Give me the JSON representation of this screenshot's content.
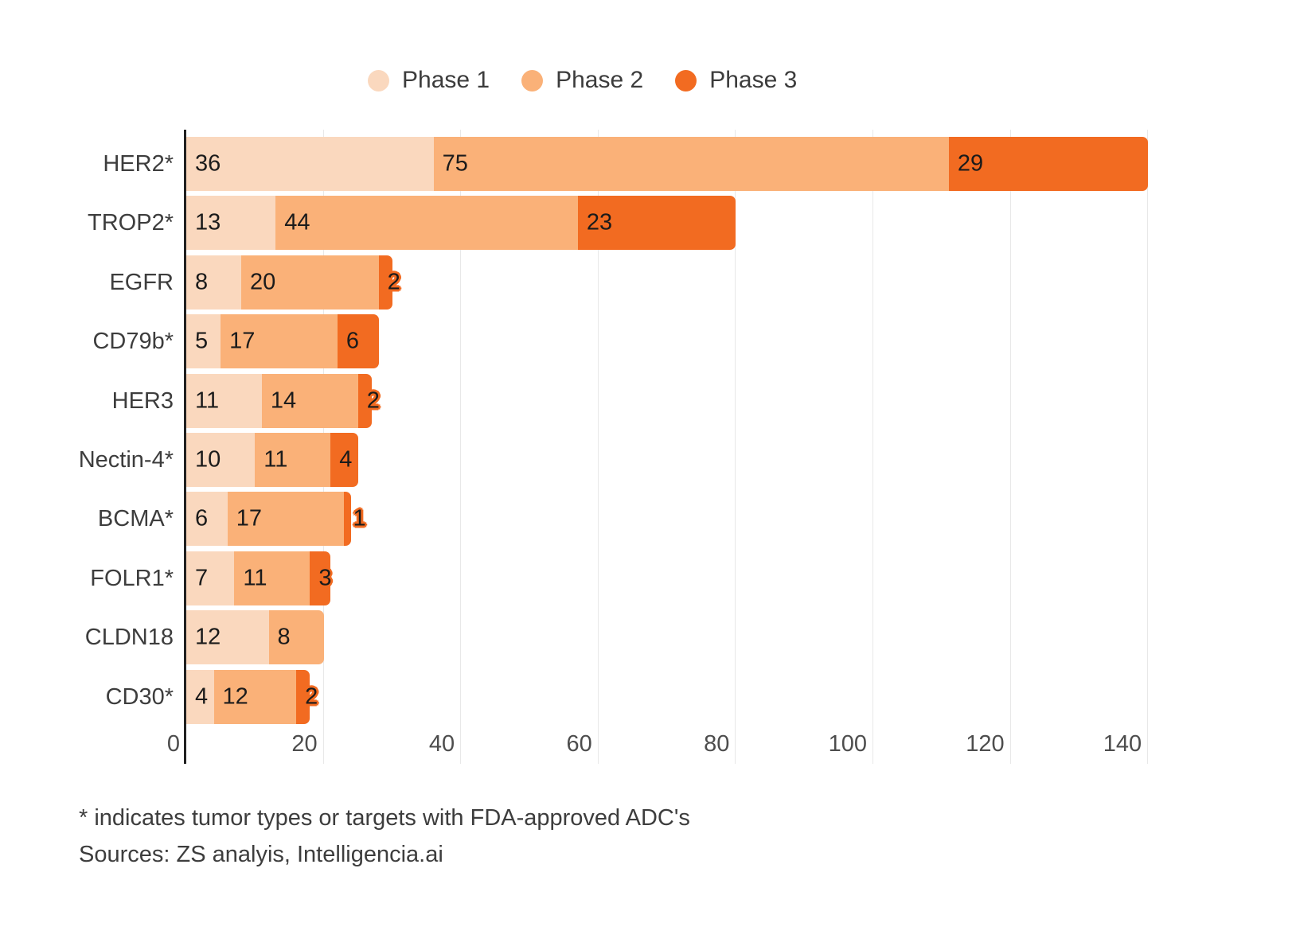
{
  "legend": {
    "items": [
      {
        "label": "Phase 1",
        "color": "#FAD8BE"
      },
      {
        "label": "Phase 2",
        "color": "#FAB178"
      },
      {
        "label": "Phase 3",
        "color": "#F26B21"
      }
    ]
  },
  "chart_data": {
    "type": "bar",
    "stacked": true,
    "orientation": "horizontal",
    "categories": [
      "HER2*",
      "TROP2*",
      "EGFR",
      "CD79b*",
      "HER3",
      "Nectin-4*",
      "BCMA*",
      "FOLR1*",
      "CLDN18",
      "CD30*"
    ],
    "series": [
      {
        "name": "Phase 1",
        "color": "#FAD8BE",
        "values": [
          36,
          13,
          8,
          5,
          11,
          10,
          6,
          7,
          12,
          4
        ]
      },
      {
        "name": "Phase 2",
        "color": "#FAB178",
        "values": [
          75,
          44,
          20,
          17,
          14,
          11,
          17,
          11,
          8,
          12
        ]
      },
      {
        "name": "Phase 3",
        "color": "#F26B21",
        "values": [
          29,
          23,
          2,
          6,
          2,
          4,
          1,
          3,
          0,
          2
        ]
      }
    ],
    "totals": [
      140,
      80,
      30,
      28,
      27,
      25,
      24,
      21,
      20,
      18
    ],
    "xlim": [
      0,
      140
    ],
    "x_ticks": [
      0,
      20,
      40,
      60,
      80,
      100,
      120,
      140
    ],
    "grid": true,
    "legend_position": "top",
    "value_labels": "inside-left, halo outline in segment color when segment too narrow"
  },
  "footnotes": {
    "asterisk": "* indicates tumor types or targets with FDA-approved ADC's",
    "sources": "Sources: ZS analyis, Intelligencia.ai"
  },
  "colors": {
    "phase1": "#FAD8BE",
    "phase2": "#FAB178",
    "phase3": "#F26B21",
    "axis_line": "#212121",
    "gridline": "#e8e8e8",
    "category_text": "#3d3d3d",
    "value_text": "#1b1b1b",
    "tick_text": "#4d4d4d",
    "background": "#ffffff"
  }
}
